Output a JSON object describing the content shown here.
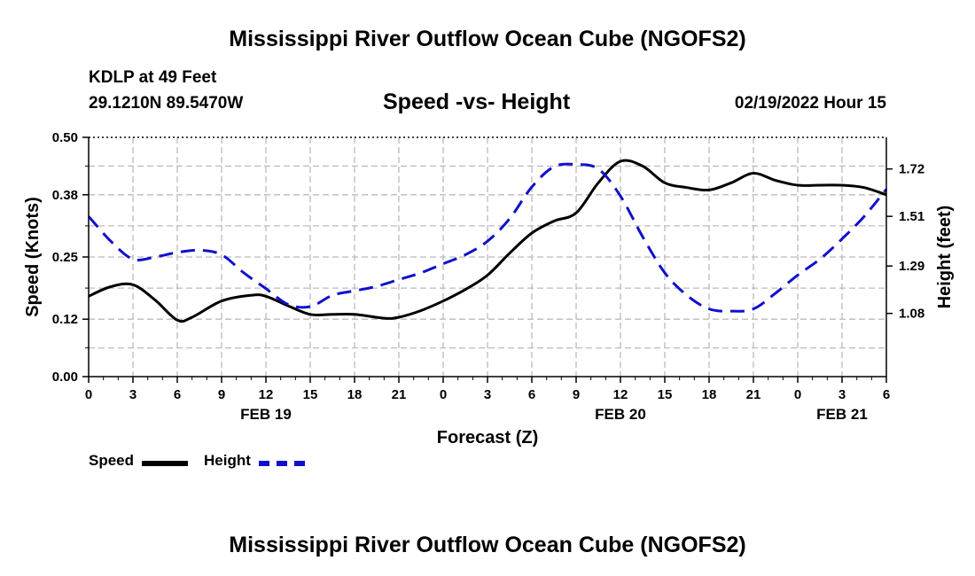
{
  "page": {
    "title": "Mississippi River Outflow Ocean Cube (NGOFS2)",
    "station": "KDLP at 49 Feet",
    "coords": "29.1210N  89.5470W",
    "subtitle": "Speed -vs- Height",
    "datetime": "02/19/2022 Hour 15",
    "bottom_title": "Mississippi River Outflow Ocean Cube (NGOFS2)"
  },
  "legend": {
    "speed_label": "Speed",
    "height_label": "Height"
  },
  "colors": {
    "speed": "#000000",
    "height": "#1010cc",
    "grid": "#bbbbbb"
  },
  "chart_data": {
    "type": "line",
    "title": "Speed -vs- Height",
    "xlabel": "Forecast (Z)",
    "ylabel": "Speed (Knots)",
    "y2label": "Height (feet)",
    "x_range": [
      0,
      54
    ],
    "ylim": [
      0.0,
      0.5
    ],
    "y2lim": [
      0.8,
      1.86
    ],
    "x_ticks": [
      0,
      3,
      6,
      9,
      12,
      15,
      18,
      21,
      24,
      27,
      30,
      33,
      36,
      39,
      42,
      45,
      48,
      51,
      54
    ],
    "x_tick_labels": [
      "0",
      "3",
      "6",
      "9",
      "12",
      "15",
      "18",
      "21",
      "0",
      "3",
      "6",
      "9",
      "12",
      "15",
      "18",
      "21",
      "0",
      "3",
      "6"
    ],
    "day_labels": [
      {
        "x": 12,
        "label": "FEB 19"
      },
      {
        "x": 36,
        "label": "FEB 20"
      },
      {
        "x": 51,
        "label": "FEB 21"
      }
    ],
    "y_ticks": [
      0.0,
      0.12,
      0.25,
      0.38,
      0.5
    ],
    "y_tick_labels": [
      "0.00",
      "0.12",
      "0.25",
      "0.38",
      "0.50"
    ],
    "y2_ticks": [
      1.08,
      1.29,
      1.51,
      1.72
    ],
    "y2_tick_labels": [
      "1.08",
      "1.29",
      "1.51",
      "1.72"
    ],
    "grid": true,
    "series": [
      {
        "name": "Speed",
        "axis": "left",
        "style": "solid",
        "x": [
          0,
          1.5,
          3,
          4.5,
          6,
          7,
          9,
          11,
          12,
          13.5,
          15,
          16.5,
          18,
          20,
          21,
          22.5,
          24,
          25.5,
          27,
          28.5,
          30,
          31.5,
          33,
          34.5,
          36,
          37.5,
          39,
          40.5,
          42,
          43.5,
          45,
          46.5,
          48,
          49.5,
          51,
          52.5,
          54
        ],
        "values": [
          0.168,
          0.188,
          0.192,
          0.16,
          0.118,
          0.124,
          0.158,
          0.17,
          0.168,
          0.148,
          0.13,
          0.13,
          0.13,
          0.122,
          0.124,
          0.138,
          0.158,
          0.182,
          0.212,
          0.258,
          0.3,
          0.325,
          0.342,
          0.405,
          0.45,
          0.44,
          0.405,
          0.395,
          0.39,
          0.405,
          0.425,
          0.41,
          0.4,
          0.4,
          0.4,
          0.395,
          0.38
        ]
      },
      {
        "name": "Height",
        "axis": "right",
        "style": "dashed",
        "x": [
          0,
          1.5,
          3,
          4.5,
          6,
          7.5,
          9,
          10.5,
          12,
          13.5,
          15,
          16.5,
          18,
          19.5,
          21,
          22.5,
          24,
          25.5,
          27,
          28.5,
          30,
          31.5,
          33,
          34.5,
          36,
          37.5,
          39,
          40.5,
          42,
          43.5,
          45,
          46.5,
          48,
          49.5,
          51,
          52.5,
          54
        ],
        "values": [
          1.51,
          1.4,
          1.32,
          1.33,
          1.35,
          1.36,
          1.34,
          1.26,
          1.19,
          1.12,
          1.11,
          1.16,
          1.18,
          1.2,
          1.23,
          1.26,
          1.3,
          1.34,
          1.4,
          1.5,
          1.64,
          1.73,
          1.74,
          1.72,
          1.6,
          1.42,
          1.26,
          1.16,
          1.1,
          1.09,
          1.1,
          1.17,
          1.25,
          1.32,
          1.41,
          1.51,
          1.63
        ]
      }
    ]
  }
}
